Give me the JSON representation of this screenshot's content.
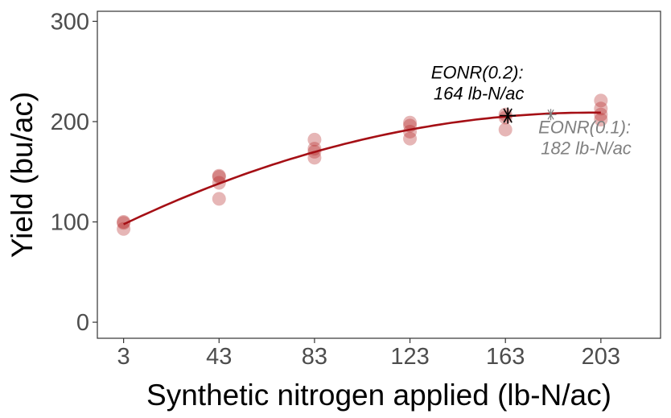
{
  "chart_data": {
    "type": "scatter",
    "xlabel": "Synthetic nitrogen applied (lb-N/ac)",
    "ylabel": "Yield (bu/ac)",
    "xlim": [
      -8,
      228
    ],
    "ylim": [
      -16,
      310
    ],
    "x_ticks": [
      3,
      43,
      83,
      123,
      163,
      203
    ],
    "y_ticks": [
      0,
      100,
      200,
      300
    ],
    "grid": false,
    "points": [
      {
        "x": 3,
        "y": 100
      },
      {
        "x": 3,
        "y": 99
      },
      {
        "x": 3,
        "y": 93
      },
      {
        "x": 43,
        "y": 146
      },
      {
        "x": 43,
        "y": 145
      },
      {
        "x": 43,
        "y": 139
      },
      {
        "x": 43,
        "y": 123
      },
      {
        "x": 83,
        "y": 182
      },
      {
        "x": 83,
        "y": 173
      },
      {
        "x": 83,
        "y": 170
      },
      {
        "x": 83,
        "y": 164
      },
      {
        "x": 123,
        "y": 199
      },
      {
        "x": 123,
        "y": 196
      },
      {
        "x": 123,
        "y": 190
      },
      {
        "x": 123,
        "y": 183
      },
      {
        "x": 163,
        "y": 207
      },
      {
        "x": 163,
        "y": 204
      },
      {
        "x": 163,
        "y": 192
      },
      {
        "x": 203,
        "y": 221
      },
      {
        "x": 203,
        "y": 213
      },
      {
        "x": 203,
        "y": 207
      },
      {
        "x": 203,
        "y": 202
      }
    ],
    "fit_curve": {
      "vertex_x": 200,
      "vertex_y": 209,
      "a": -0.00287,
      "x_range": [
        3,
        203
      ]
    },
    "markers": [
      {
        "x": 164,
        "y": 206,
        "label_line1": "EONR(0.2):",
        "label_line2": "164 lb-N/ac",
        "color": "#000000"
      },
      {
        "x": 182,
        "y": 207,
        "label_line1": "EONR(0.1):",
        "label_line2": "182 lb-N/ac",
        "color": "#808080"
      }
    ],
    "colors": {
      "points": "#b22222",
      "curve": "#a50f15",
      "axis": "#333333",
      "tick_text": "#4d4d4d"
    }
  }
}
